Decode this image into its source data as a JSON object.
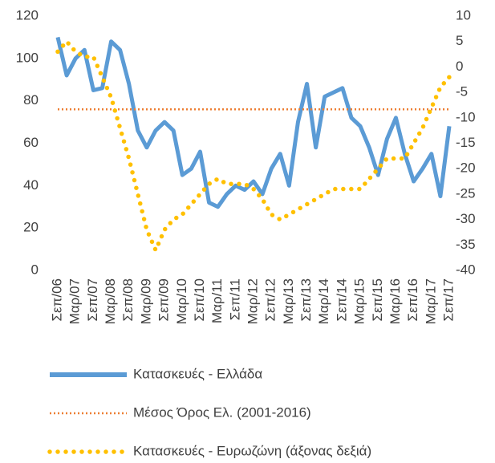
{
  "chart_data": {
    "type": "line",
    "categories": [
      "Σεπ/06",
      null,
      "Μαρ/07",
      null,
      "Σεπ/07",
      null,
      "Μαρ/08",
      null,
      "Σεπ/08",
      null,
      "Μαρ/09",
      null,
      "Σεπ/09",
      null,
      "Μαρ/10",
      null,
      "Σεπ/10",
      null,
      "Μαρ/11",
      null,
      "Σεπ/11",
      null,
      "Μαρ/12",
      null,
      "Σεπ/12",
      null,
      "Μαρ/13",
      null,
      "Σεπ/13",
      null,
      "Μαρ/14",
      null,
      "Σεπ/14",
      null,
      "Μαρ/15",
      null,
      "Σεπ/15",
      null,
      "Μαρ/16",
      null,
      "Σεπ/16",
      null,
      "Μαρ/17",
      null,
      "Σεπ/17"
    ],
    "series": [
      {
        "name": "Κατασκευές  - Ελλάδα",
        "color": "#5b9bd5",
        "style": "solid",
        "values": [
          110,
          92,
          100,
          104,
          85,
          86,
          108,
          104,
          88,
          66,
          58,
          66,
          70,
          66,
          45,
          48,
          56,
          32,
          30,
          36,
          40,
          38,
          42,
          36,
          48,
          55,
          40,
          70,
          88,
          58,
          82,
          84,
          86,
          72,
          68,
          58,
          45,
          62,
          72,
          55,
          42,
          48,
          55,
          35,
          68
        ]
      },
      {
        "name": "Μέσος Όρος Ελ. (2001-2016)",
        "color": "#ed7d31",
        "style": "dotted",
        "value": 76
      },
      {
        "name": "Κατασκευές - Ευρωζώνη (άξονας δεξιά)",
        "color": "#ffc000",
        "style": "dots",
        "axis": "y2",
        "values": [
          3,
          5,
          3,
          2,
          2,
          -2,
          -6,
          -12,
          -18,
          -25,
          -32,
          -36,
          -32,
          -30,
          -29,
          -27,
          -25,
          -23,
          -22,
          -23,
          -23,
          -23,
          -24,
          -26,
          -29,
          -30,
          -29,
          -28,
          -27,
          -26,
          -25,
          -24,
          -24,
          -24,
          -24,
          -22,
          -20,
          -18,
          -18,
          -18,
          -15,
          -12,
          -8,
          -4,
          -2
        ]
      }
    ],
    "ylim": [
      0,
      120
    ],
    "yticks": [
      0,
      20,
      40,
      60,
      80,
      100,
      120
    ],
    "y2lim": [
      -40,
      10
    ],
    "y2ticks": [
      -40,
      -35,
      -30,
      -25,
      -20,
      -15,
      -10,
      -5,
      0,
      5,
      10
    ]
  }
}
